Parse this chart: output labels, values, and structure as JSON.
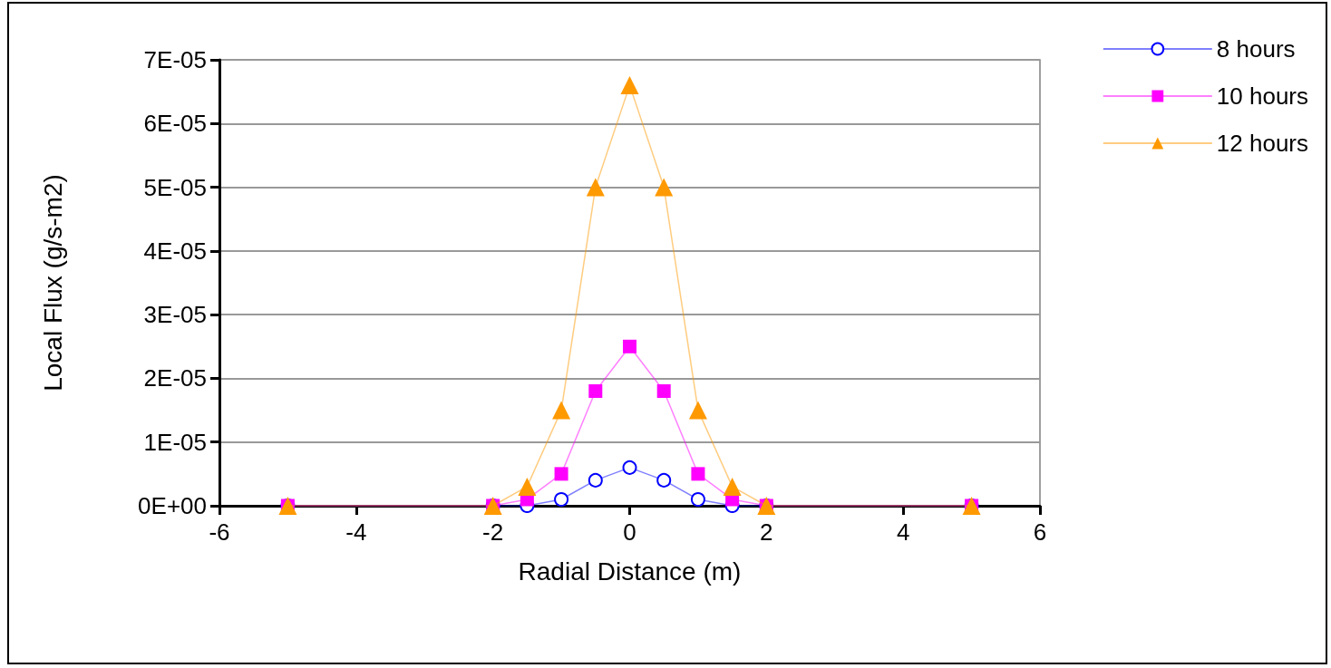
{
  "chart_data": {
    "type": "line",
    "xlabel": "Radial Distance (m)",
    "ylabel": "Local Flux (g/s-m2)",
    "x": [
      -5,
      -2,
      -1.5,
      -1,
      -0.5,
      0,
      0.5,
      1,
      1.5,
      2,
      5
    ],
    "series": [
      {
        "name": "8 hours",
        "color": "#0000ff",
        "marker": "circle",
        "values": [
          0,
          0,
          0,
          1e-06,
          4e-06,
          6e-06,
          4e-06,
          1e-06,
          0,
          0,
          0
        ]
      },
      {
        "name": "10 hours",
        "color": "#ff00ff",
        "marker": "square",
        "values": [
          0,
          0,
          1e-06,
          5e-06,
          1.8e-05,
          2.5e-05,
          1.8e-05,
          5e-06,
          1e-06,
          0,
          0
        ]
      },
      {
        "name": "12 hours",
        "color": "#ff9900",
        "marker": "triangle",
        "values": [
          0,
          0,
          3e-06,
          1.5e-05,
          5e-05,
          6.6e-05,
          5e-05,
          1.5e-05,
          3e-06,
          0,
          0
        ]
      }
    ],
    "xlim": [
      -6,
      6
    ],
    "xticks": [
      -6,
      -4,
      -2,
      0,
      2,
      4,
      6
    ],
    "ylim": [
      0,
      7e-05
    ],
    "yticks": [
      {
        "value": 0,
        "label": "0E+00"
      },
      {
        "value": 1e-05,
        "label": "1E-05"
      },
      {
        "value": 2e-05,
        "label": "2E-05"
      },
      {
        "value": 3e-05,
        "label": "3E-05"
      },
      {
        "value": 4e-05,
        "label": "4E-05"
      },
      {
        "value": 5e-05,
        "label": "5E-05"
      },
      {
        "value": 6e-05,
        "label": "6E-05"
      },
      {
        "value": 7e-05,
        "label": "7E-05"
      }
    ],
    "grid": "y",
    "legend": "top right",
    "line_style": "solid"
  }
}
